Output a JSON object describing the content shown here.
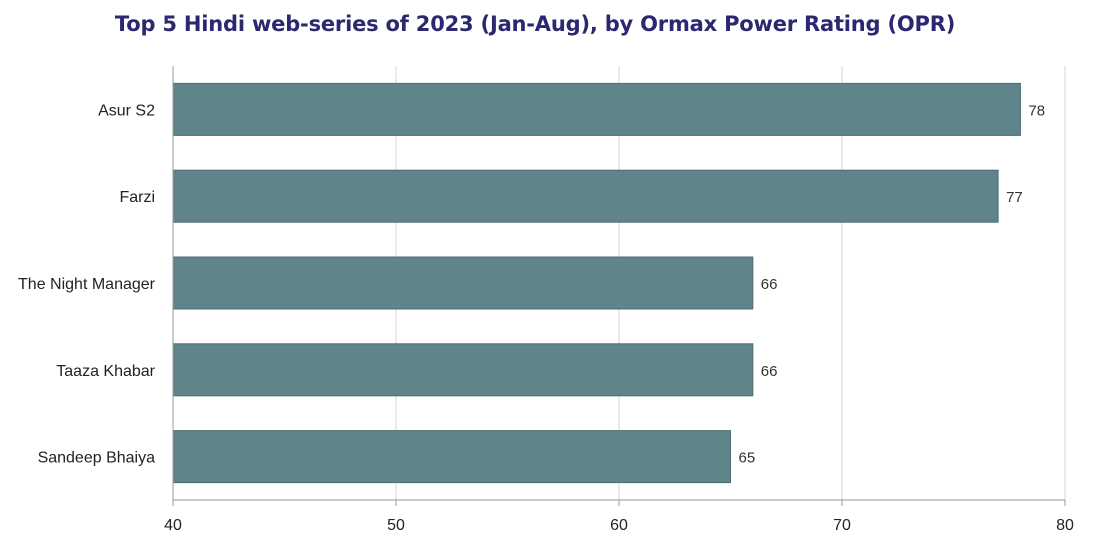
{
  "colors": {
    "title": "#2b2870",
    "bar": "#5f858a",
    "bar_stroke": "#4c6d71",
    "grid": "#d6d6d6",
    "axis": "#9a9a9a"
  },
  "chart_data": {
    "type": "bar",
    "orientation": "horizontal",
    "title": "Top 5 Hindi web-series of 2023 (Jan-Aug), by Ormax Power Rating (OPR)",
    "xlabel": "",
    "ylabel": "",
    "categories": [
      "Asur S2",
      "Farzi",
      "The Night Manager",
      "Taaza Khabar",
      "Sandeep Bhaiya"
    ],
    "values": [
      78,
      77,
      66,
      66,
      65
    ],
    "data_labels": [
      "78",
      "77",
      "66",
      "66",
      "65"
    ],
    "xlim": [
      40,
      80
    ],
    "xticks": [
      40,
      50,
      60,
      70,
      80
    ],
    "xtick_labels": [
      "40",
      "50",
      "60",
      "70",
      "80"
    ],
    "grid": true,
    "legend": "none"
  }
}
